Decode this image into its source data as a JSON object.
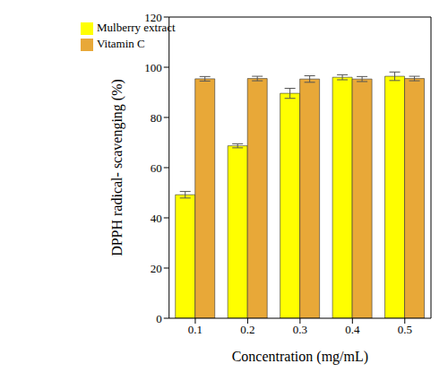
{
  "chart_data": {
    "type": "bar",
    "x_label": "Concentration (mg/mL)",
    "y_label": "DPPH radical- scavenging (%)",
    "categories": [
      "0.1",
      "0.2",
      "0.3",
      "0.4",
      "0.5"
    ],
    "series": [
      {
        "name": "Mulberry extract",
        "color": "#ffff00",
        "values": [
          49.2,
          68.7,
          89.6,
          96.0,
          96.4
        ],
        "errors": [
          1.3,
          0.8,
          2.0,
          1.0,
          1.7
        ]
      },
      {
        "name": "Vitamin C",
        "color": "#e8a838",
        "values": [
          95.4,
          95.5,
          95.3,
          95.3,
          95.5
        ],
        "errors": [
          0.9,
          0.9,
          1.3,
          1.0,
          0.9
        ]
      }
    ],
    "ylim": [
      0,
      120
    ],
    "yticks": [
      0,
      20,
      40,
      60,
      80,
      100,
      120
    ],
    "grid": false,
    "legend": "upper left"
  }
}
